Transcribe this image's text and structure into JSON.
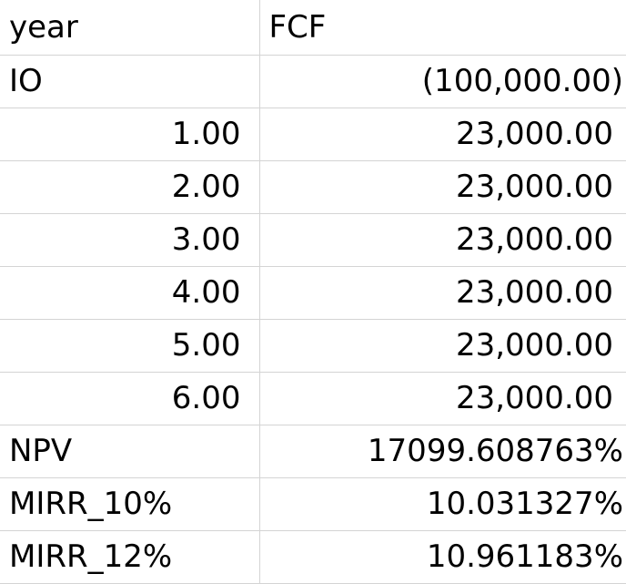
{
  "header": {
    "col_a": "year",
    "col_b": "FCF"
  },
  "rows": [
    {
      "label": "IO",
      "value": "(100,000.00)"
    },
    {
      "label": "1.00",
      "value": "23,000.00"
    },
    {
      "label": "2.00",
      "value": "23,000.00"
    },
    {
      "label": "3.00",
      "value": "23,000.00"
    },
    {
      "label": "4.00",
      "value": "23,000.00"
    },
    {
      "label": "5.00",
      "value": "23,000.00"
    },
    {
      "label": "6.00",
      "value": "23,000.00"
    }
  ],
  "metrics": [
    {
      "label": "NPV",
      "value": "17099.608763%"
    },
    {
      "label": "MIRR_10%",
      "value": "10.031327%"
    },
    {
      "label": "MIRR_12%",
      "value": "10.961183%"
    }
  ]
}
